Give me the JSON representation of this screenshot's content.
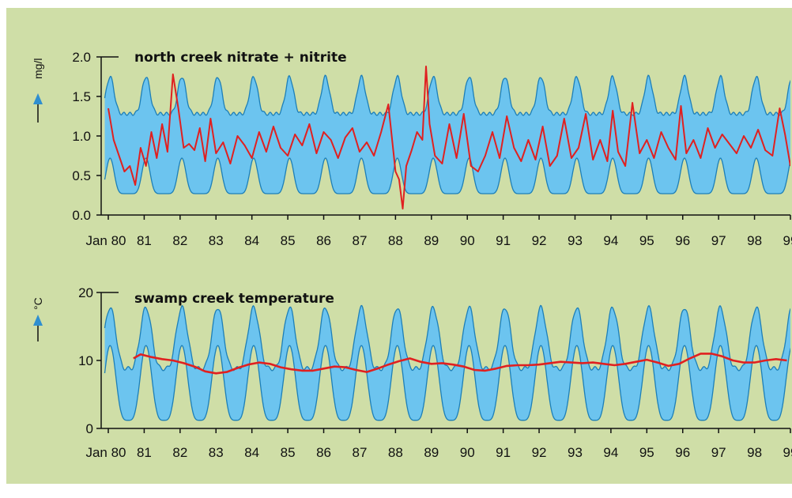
{
  "colors": {
    "background": "#cfdea7",
    "band_fill": "#6cc4ef",
    "band_stroke": "#1d7fb8",
    "series_line": "#e02020",
    "arrow": "#2f8fd0",
    "axis": "#111111"
  },
  "x_tick_labels": [
    "Jan 80",
    "81",
    "82",
    "83",
    "84",
    "85",
    "86",
    "87",
    "88",
    "89",
    "90",
    "91",
    "92",
    "93",
    "94",
    "95",
    "96",
    "97",
    "98",
    "99"
  ],
  "chart_data": [
    {
      "type": "area",
      "title": "north creek nitrate + nitrite",
      "ylabel": "mg/l",
      "xlabel": "",
      "ylim": [
        0.0,
        2.0
      ],
      "yticks": [
        "0.0",
        "0.5",
        "1.0",
        "1.5",
        "2.0"
      ],
      "xlim": [
        1980,
        1999
      ],
      "band": {
        "description": "seasonal envelope; upper 1.25-1.75, lower 0.25-0.75",
        "upper_base": 1.28,
        "upper_peak": 1.75,
        "lower_base": 0.27,
        "lower_peak": 0.72,
        "period_years": 1.0
      },
      "series": [
        {
          "values_x": [
            1980.0,
            1980.15,
            1980.3,
            1980.45,
            1980.6,
            1980.75,
            1980.9,
            1981.05,
            1981.2,
            1981.35,
            1981.5,
            1981.65,
            1981.8,
            1981.95,
            1982.1,
            1982.25,
            1982.4,
            1982.55,
            1982.7,
            1982.85,
            1983.0,
            1983.2,
            1983.4,
            1983.6,
            1983.8,
            1984.0,
            1984.2,
            1984.4,
            1984.6,
            1984.8,
            1985.0,
            1985.2,
            1985.4,
            1985.6,
            1985.8,
            1986.0,
            1986.2,
            1986.4,
            1986.6,
            1986.8,
            1987.0,
            1987.2,
            1987.4,
            1987.6,
            1987.8,
            1988.0,
            1988.1,
            1988.2,
            1988.3,
            1988.45,
            1988.6,
            1988.75,
            1988.85,
            1988.95,
            1989.1,
            1989.3,
            1989.5,
            1989.7,
            1989.9,
            1990.1,
            1990.3,
            1990.5,
            1990.7,
            1990.9,
            1991.1,
            1991.3,
            1991.5,
            1991.7,
            1991.9,
            1992.1,
            1992.3,
            1992.5,
            1992.7,
            1992.9,
            1993.1,
            1993.3,
            1993.5,
            1993.7,
            1993.9,
            1994.05,
            1994.2,
            1994.4,
            1994.6,
            1994.8,
            1995.0,
            1995.2,
            1995.4,
            1995.6,
            1995.8,
            1995.95,
            1996.1,
            1996.3,
            1996.5,
            1996.7,
            1996.9,
            1997.1,
            1997.3,
            1997.5,
            1997.7,
            1997.9,
            1998.1,
            1998.3,
            1998.5,
            1998.7,
            1998.85,
            1999.0
          ],
          "values_y": [
            1.35,
            0.95,
            0.75,
            0.55,
            0.62,
            0.38,
            0.85,
            0.62,
            1.05,
            0.72,
            1.15,
            0.8,
            1.78,
            1.35,
            0.85,
            0.9,
            0.82,
            1.1,
            0.68,
            1.22,
            0.78,
            0.92,
            0.65,
            1.0,
            0.88,
            0.72,
            1.05,
            0.8,
            1.12,
            0.85,
            0.75,
            1.02,
            0.88,
            1.15,
            0.78,
            1.05,
            0.95,
            0.72,
            0.98,
            1.1,
            0.8,
            0.92,
            0.75,
            1.05,
            1.4,
            0.55,
            0.45,
            0.08,
            0.62,
            0.82,
            1.05,
            0.95,
            1.88,
            1.15,
            0.75,
            0.65,
            1.15,
            0.72,
            1.28,
            0.62,
            0.55,
            0.75,
            1.05,
            0.72,
            1.25,
            0.85,
            0.68,
            0.95,
            0.7,
            1.12,
            0.62,
            0.75,
            1.22,
            0.72,
            0.85,
            1.28,
            0.7,
            0.95,
            0.68,
            1.32,
            0.8,
            0.62,
            1.42,
            0.78,
            0.95,
            0.72,
            1.05,
            0.85,
            0.7,
            1.38,
            0.78,
            0.95,
            0.72,
            1.1,
            0.85,
            1.02,
            0.9,
            0.78,
            1.0,
            0.85,
            1.08,
            0.82,
            0.75,
            1.35,
            1.02,
            0.62
          ]
        }
      ]
    },
    {
      "type": "area",
      "title": "swamp creek temperature",
      "ylabel": "°C",
      "xlabel": "",
      "ylim": [
        0,
        20
      ],
      "yticks": [
        "0",
        "10",
        "20"
      ],
      "xlim": [
        1980,
        1999
      ],
      "band": {
        "description": "seasonal envelope; upper 9-18, lower 1-12",
        "upper_base": 8.8,
        "upper_peak": 17.8,
        "lower_base": 1.2,
        "lower_peak": 12.2,
        "period_years": 1.0
      },
      "series": [
        {
          "values_x": [
            1980.7,
            1980.9,
            1981.2,
            1981.5,
            1981.8,
            1982.1,
            1982.4,
            1982.7,
            1983.0,
            1983.3,
            1983.6,
            1983.9,
            1984.2,
            1984.5,
            1984.8,
            1985.1,
            1985.4,
            1985.7,
            1986.0,
            1986.3,
            1986.6,
            1986.9,
            1987.2,
            1987.5,
            1987.8,
            1988.1,
            1988.4,
            1988.7,
            1989.0,
            1989.3,
            1989.6,
            1989.9,
            1990.2,
            1990.5,
            1990.8,
            1991.1,
            1991.4,
            1991.7,
            1992.0,
            1992.3,
            1992.6,
            1992.9,
            1993.2,
            1993.5,
            1993.8,
            1994.1,
            1994.4,
            1994.7,
            1995.0,
            1995.3,
            1995.6,
            1995.9,
            1996.2,
            1996.5,
            1996.8,
            1997.1,
            1997.4,
            1997.7,
            1998.0,
            1998.3,
            1998.6,
            1998.9
          ],
          "values_y": [
            10.3,
            10.9,
            10.5,
            10.2,
            10.0,
            9.6,
            9.1,
            8.4,
            8.1,
            8.3,
            8.9,
            9.4,
            9.7,
            9.5,
            9.0,
            8.7,
            8.5,
            8.5,
            8.8,
            9.1,
            9.0,
            8.6,
            8.3,
            8.8,
            9.4,
            9.9,
            10.3,
            9.8,
            9.5,
            9.6,
            9.4,
            9.1,
            8.6,
            8.5,
            8.8,
            9.2,
            9.3,
            9.3,
            9.4,
            9.6,
            9.8,
            9.7,
            9.6,
            9.7,
            9.5,
            9.3,
            9.5,
            9.8,
            10.1,
            9.7,
            9.2,
            9.5,
            10.3,
            11.0,
            11.0,
            10.6,
            10.0,
            9.7,
            9.7,
            10.0,
            10.2,
            10.0
          ]
        }
      ]
    }
  ]
}
